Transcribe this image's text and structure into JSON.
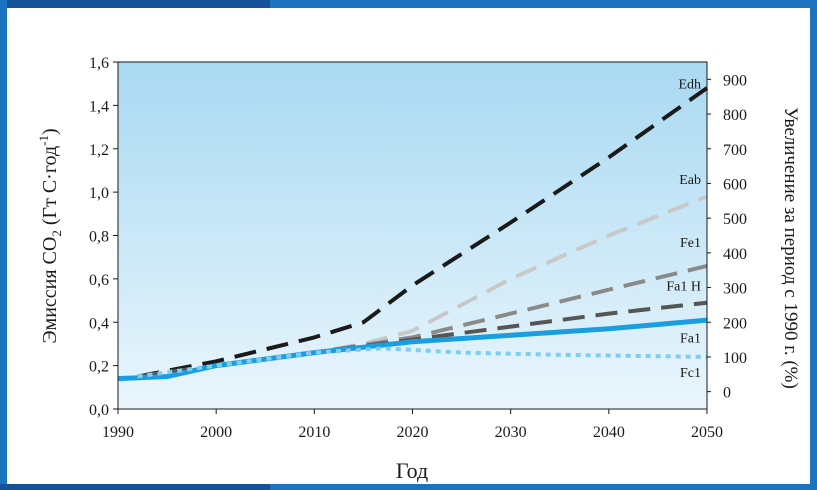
{
  "chart_data": {
    "type": "line",
    "xlabel": "Год",
    "ylabel_left": "Эмиссия CO",
    "ylabel_left_sub": "2",
    "ylabel_left_units": " (Гт С·год",
    "ylabel_left_sup": "-1",
    "ylabel_left_close": ")",
    "ylabel_right": "Увеличение за период с 1990 г. (%)",
    "xlim": [
      1990,
      2050
    ],
    "ylim": [
      0.0,
      1.6
    ],
    "right_ylim": [
      -50,
      950
    ],
    "x_ticks": [
      "1990",
      "2000",
      "2010",
      "2020",
      "2030",
      "2040",
      "2050"
    ],
    "y_ticks": [
      "0,0",
      "0,2",
      "0,4",
      "0,6",
      "0,8",
      "1,0",
      "1,2",
      "1,4",
      "1,6"
    ],
    "right_ticks": [
      "0",
      "100",
      "200",
      "300",
      "400",
      "500",
      "600",
      "700",
      "800",
      "900"
    ],
    "background_gradient": [
      "#a9d9f2",
      "#eaf6fc"
    ],
    "series": [
      {
        "name": "Edh",
        "color": "#1a1a1a",
        "style": "dashed",
        "x": [
          1992,
          2000,
          2010,
          2015,
          2020,
          2030,
          2040,
          2050
        ],
        "y": [
          0.15,
          0.22,
          0.33,
          0.4,
          0.57,
          0.86,
          1.16,
          1.48
        ]
      },
      {
        "name": "Eab",
        "color": "#c8c8c8",
        "style": "dashed",
        "x": [
          1992,
          2000,
          2010,
          2015,
          2020,
          2030,
          2040,
          2050
        ],
        "y": [
          0.15,
          0.2,
          0.26,
          0.3,
          0.36,
          0.6,
          0.8,
          0.98
        ]
      },
      {
        "name": "Fe1",
        "color": "#8a8a8a",
        "style": "dashed",
        "x": [
          1992,
          2000,
          2010,
          2020,
          2030,
          2040,
          2050
        ],
        "y": [
          0.15,
          0.2,
          0.26,
          0.33,
          0.44,
          0.55,
          0.66
        ]
      },
      {
        "name": "Fa1 H",
        "color": "#555555",
        "style": "dashed",
        "x": [
          1992,
          2000,
          2010,
          2020,
          2030,
          2040,
          2050
        ],
        "y": [
          0.15,
          0.2,
          0.26,
          0.32,
          0.38,
          0.44,
          0.49
        ]
      },
      {
        "name": "Fa1",
        "color": "#1a9ee0",
        "style": "solid",
        "x": [
          1990,
          1995,
          2000,
          2010,
          2020,
          2030,
          2040,
          2050
        ],
        "y": [
          0.14,
          0.15,
          0.2,
          0.26,
          0.31,
          0.34,
          0.37,
          0.41
        ]
      },
      {
        "name": "Fc1",
        "color": "#7fcdf0",
        "style": "dotted",
        "x": [
          1992,
          2000,
          2010,
          2017,
          2025,
          2035,
          2050
        ],
        "y": [
          0.15,
          0.2,
          0.26,
          0.28,
          0.26,
          0.25,
          0.24
        ]
      }
    ],
    "series_label_y": {
      "Edh": 1.5,
      "Eab": 1.06,
      "Fe1": 0.77,
      "Fa1 H": 0.57,
      "Fa1": 0.33,
      "Fc1": 0.17
    }
  }
}
